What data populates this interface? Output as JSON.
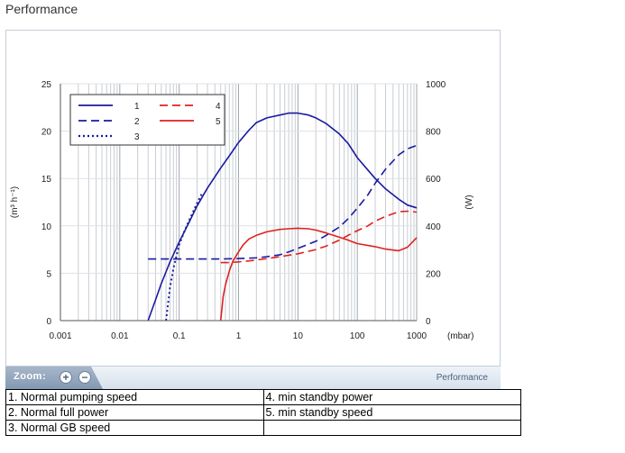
{
  "page": {
    "title": "Performance"
  },
  "zoom": {
    "label": "Zoom:",
    "in_glyph": "+",
    "out_glyph": "−",
    "tab_label": "Performance"
  },
  "legend_table": {
    "rows": [
      [
        "1. Normal pumping speed",
        "4. min standby power"
      ],
      [
        "2. Normal full power",
        "5. min standby speed"
      ],
      [
        "3. Normal GB speed",
        ""
      ]
    ]
  },
  "chart_data": {
    "type": "line",
    "title": "",
    "xlabel": "(mbar)",
    "ylabel_left": "(m³ h⁻¹)",
    "ylabel_right": "(W)",
    "x_scale": "log",
    "xlim": [
      0.001,
      1000
    ],
    "ylim_left": [
      0,
      25
    ],
    "ylim_right": [
      0,
      1000
    ],
    "x_ticks": [
      "0.001",
      "0.01",
      "0.1",
      "1",
      "10",
      "100",
      "1000"
    ],
    "y_ticks_left": [
      "0",
      "5",
      "10",
      "15",
      "20",
      "25"
    ],
    "y_ticks_right": [
      "0",
      "200",
      "400",
      "600",
      "800",
      "1000"
    ],
    "grid": true,
    "legend_position": "top-left",
    "series": [
      {
        "name": "1",
        "axis": "left",
        "style": "solid",
        "color": "#1a1aa0",
        "x": [
          0.03,
          0.04,
          0.05,
          0.07,
          0.1,
          0.15,
          0.2,
          0.3,
          0.5,
          0.7,
          1,
          1.5,
          2,
          3,
          5,
          7,
          10,
          15,
          20,
          30,
          50,
          70,
          100,
          150,
          200,
          300,
          500,
          700,
          1000
        ],
        "y": [
          0,
          2.2,
          3.9,
          6.2,
          8.3,
          10.5,
          12.1,
          14.0,
          16.1,
          17.4,
          18.8,
          20.1,
          20.9,
          21.4,
          21.7,
          21.9,
          21.9,
          21.7,
          21.4,
          20.8,
          19.7,
          18.7,
          17.2,
          15.9,
          15.0,
          13.9,
          12.8,
          12.2,
          11.9
        ]
      },
      {
        "name": "2",
        "axis": "right",
        "style": "dashed",
        "color": "#1a1aa0",
        "x": [
          0.03,
          0.05,
          0.1,
          0.2,
          0.5,
          1,
          2,
          3,
          5,
          7,
          10,
          20,
          30,
          50,
          70,
          100,
          150,
          200,
          300,
          500,
          700,
          1000
        ],
        "y": [
          260,
          260,
          260,
          260,
          260,
          262,
          265,
          270,
          278,
          290,
          305,
          335,
          360,
          395,
          430,
          475,
          530,
          580,
          640,
          700,
          725,
          740
        ]
      },
      {
        "name": "3",
        "axis": "left",
        "style": "dotted",
        "color": "#1a1aa0",
        "x": [
          0.06,
          0.07,
          0.08,
          0.1,
          0.12,
          0.15,
          0.2,
          0.25
        ],
        "y": [
          0,
          3.5,
          5.5,
          8.0,
          9.3,
          10.7,
          12.4,
          13.6
        ]
      },
      {
        "name": "4",
        "axis": "right",
        "style": "dashed",
        "color": "#e02020",
        "x": [
          0.5,
          0.7,
          1,
          1.5,
          2,
          3,
          5,
          7,
          10,
          20,
          30,
          50,
          70,
          100,
          150,
          200,
          300,
          500,
          700,
          1000
        ],
        "y": [
          245,
          245,
          248,
          252,
          256,
          262,
          270,
          276,
          282,
          300,
          315,
          340,
          360,
          380,
          400,
          420,
          440,
          460,
          462,
          458
        ]
      },
      {
        "name": "5",
        "axis": "right",
        "style": "solid",
        "color": "#e02020",
        "x": [
          0.5,
          0.55,
          0.6,
          0.7,
          0.8,
          1,
          1.2,
          1.5,
          2,
          3,
          5,
          7,
          10,
          15,
          20,
          30,
          50,
          70,
          100,
          200,
          300,
          500,
          700,
          1000
        ],
        "y": [
          0,
          100,
          150,
          210,
          250,
          290,
          320,
          345,
          360,
          375,
          385,
          388,
          390,
          388,
          382,
          370,
          352,
          340,
          325,
          312,
          302,
          295,
          310,
          350
        ]
      }
    ]
  }
}
